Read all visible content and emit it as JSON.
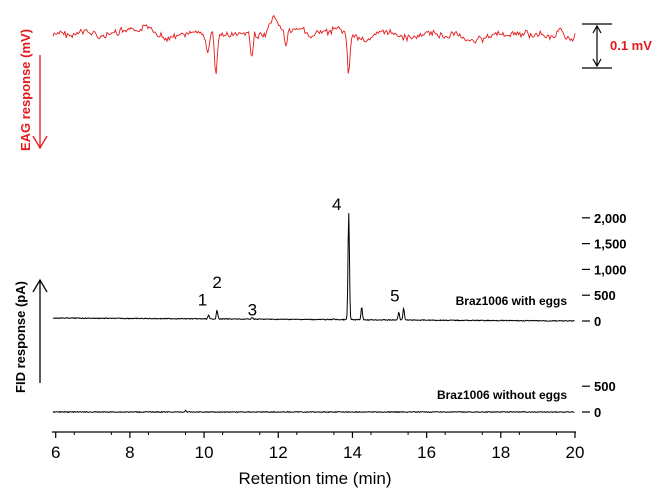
{
  "chart_data": {
    "type": "line",
    "x_axis": {
      "label": "Retention time (min)",
      "range": [
        5.9,
        20
      ],
      "ticks": [
        6,
        8,
        10,
        12,
        14,
        16,
        18,
        20
      ]
    },
    "fid_axis": {
      "label": "FID response (pA)",
      "range": [
        0,
        2300
      ],
      "ticks": [
        {
          "value": 2000,
          "label": "2,000"
        },
        {
          "value": 1500,
          "label": "1,500"
        },
        {
          "value": 1000,
          "label": "1,000"
        },
        {
          "value": 500,
          "label": "500"
        },
        {
          "value": 0,
          "label": "0"
        }
      ]
    },
    "lower_axis": {
      "ticks": [
        {
          "value": 500,
          "label": "500"
        },
        {
          "value": 0,
          "label": "0"
        }
      ]
    },
    "eag": {
      "label": "EAG response (mV)",
      "scale_label": "0.1 mV",
      "color": "#e41a1c",
      "dips": [
        {
          "x": 10.1,
          "depth": 0.45
        },
        {
          "x": 10.32,
          "depth": 0.9
        },
        {
          "x": 11.28,
          "depth": 0.6
        },
        {
          "x": 12.2,
          "depth": 0.35
        },
        {
          "x": 13.9,
          "depth": 0.9
        }
      ]
    },
    "series": [
      {
        "name": "Braz1006 with eggs",
        "color": "#000000",
        "peaks": [
          {
            "label": "1",
            "x": 10.12,
            "y": 70
          },
          {
            "label": "2",
            "x": 10.35,
            "y": 170
          },
          {
            "label": "3",
            "x": 11.3,
            "y": 30
          },
          {
            "label": "",
            "x": 13.5,
            "y": 20
          },
          {
            "label": "4",
            "x": 13.9,
            "y": 2070
          },
          {
            "label": "",
            "x": 14.25,
            "y": 240
          },
          {
            "label": "5",
            "x": 15.25,
            "y": 150
          },
          {
            "label": "",
            "x": 15.38,
            "y": 230
          }
        ]
      },
      {
        "name": "Braz1006 without eggs",
        "color": "#000000",
        "peaks": [
          {
            "label": "",
            "x": 9.5,
            "y": 25
          }
        ]
      }
    ]
  }
}
